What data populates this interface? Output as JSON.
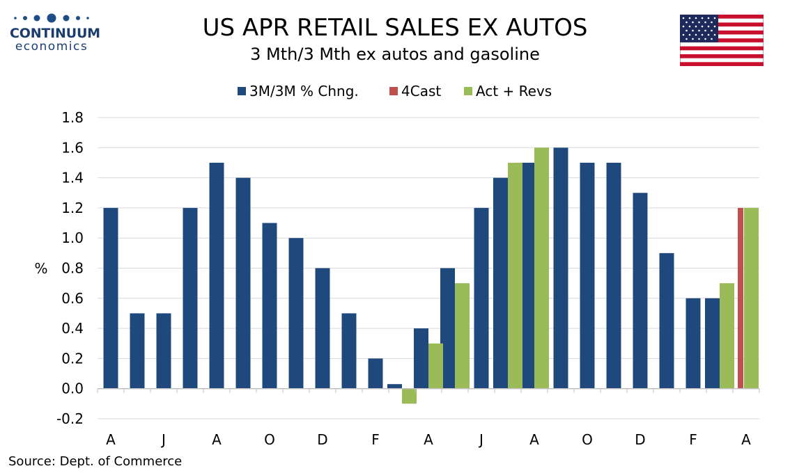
{
  "logo": {
    "name": "CONTINUUM",
    "sub": "economics"
  },
  "header": {
    "title": "US APR RETAIL SALES EX AUTOS",
    "subtitle": "3 Mth/3 Mth  ex autos and gasoline"
  },
  "flag": {
    "name": "us-flag-icon"
  },
  "source": "Source: Dept. of Commerce",
  "colors": {
    "series1": "#1f497d",
    "series2": "#c0504d",
    "series3": "#9bbb59",
    "grid": "#d9d9d9"
  },
  "chart_data": {
    "type": "bar",
    "ylabel": "%",
    "ylim": [
      -0.2,
      1.8
    ],
    "yticks": [
      "1.8",
      "1.6",
      "1.4",
      "1.2",
      "1.0",
      "0.8",
      "0.6",
      "0.4",
      "0.2",
      "0.0",
      "-0.2"
    ],
    "grid": true,
    "legend_position": "top",
    "x_tick_labels": [
      "A",
      "J",
      "A",
      "O",
      "D",
      "F",
      "A",
      "J",
      "A",
      "O",
      "D",
      "F",
      "A"
    ],
    "series": [
      {
        "name": "3M/3M % Chng.",
        "color": "#1f497d",
        "values": [
          1.2,
          0.5,
          0.5,
          1.2,
          1.5,
          1.4,
          1.1,
          1.0,
          0.8,
          0.5,
          0.2,
          0.03,
          0.4,
          0.8,
          1.2,
          1.4,
          1.5,
          1.6,
          1.5,
          1.5,
          1.3,
          0.9,
          0.6,
          0.6,
          null
        ]
      },
      {
        "name": "4Cast",
        "color": "#c0504d",
        "values": [
          null,
          null,
          null,
          null,
          null,
          null,
          null,
          null,
          null,
          null,
          null,
          null,
          null,
          null,
          null,
          null,
          null,
          null,
          null,
          null,
          null,
          null,
          null,
          null,
          1.2
        ]
      },
      {
        "name": "Act + Revs",
        "color": "#9bbb59",
        "values": [
          null,
          null,
          null,
          null,
          null,
          null,
          null,
          null,
          null,
          null,
          null,
          -0.1,
          0.3,
          0.7,
          null,
          1.5,
          1.6,
          null,
          null,
          null,
          null,
          null,
          null,
          0.7,
          1.2
        ]
      }
    ]
  }
}
